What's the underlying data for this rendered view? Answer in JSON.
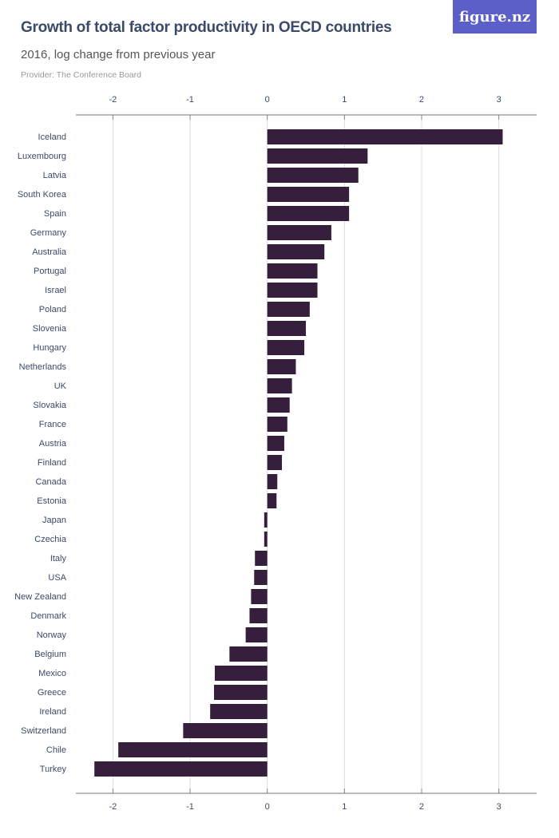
{
  "header": {
    "title": "Growth of total factor productivity in OECD countries",
    "subtitle": "2016, log change from previous year",
    "provider": "Provider: The Conference Board",
    "logo": "figure.nz"
  },
  "colors": {
    "bar": "#361f3d",
    "logo_bg": "#5b5fc7",
    "title": "#3b4a68"
  },
  "chart_data": {
    "type": "bar",
    "orientation": "horizontal",
    "title": "Growth of total factor productivity in OECD countries",
    "subtitle": "2016, log change from previous year",
    "xlabel": "",
    "ylabel": "",
    "xlim": [
      -2.48,
      3.49
    ],
    "xticks": [
      -2,
      -1,
      0,
      1,
      2,
      3
    ],
    "grid": true,
    "categories": [
      "Iceland",
      "Luxembourg",
      "Latvia",
      "South Korea",
      "Spain",
      "Germany",
      "Australia",
      "Portugal",
      "Israel",
      "Poland",
      "Slovenia",
      "Hungary",
      "Netherlands",
      "UK",
      "Slovakia",
      "France",
      "Austria",
      "Finland",
      "Canada",
      "Estonia",
      "Japan",
      "Czechia",
      "Italy",
      "USA",
      "New Zealand",
      "Denmark",
      "Norway",
      "Belgium",
      "Mexico",
      "Greece",
      "Ireland",
      "Switzerland",
      "Chile",
      "Turkey"
    ],
    "values": [
      3.05,
      1.3,
      1.18,
      1.06,
      1.06,
      0.83,
      0.74,
      0.65,
      0.65,
      0.55,
      0.5,
      0.48,
      0.37,
      0.32,
      0.29,
      0.26,
      0.22,
      0.19,
      0.13,
      0.12,
      -0.04,
      -0.04,
      -0.16,
      -0.17,
      -0.21,
      -0.23,
      -0.28,
      -0.49,
      -0.68,
      -0.69,
      -0.74,
      -1.09,
      -1.93,
      -2.24
    ]
  }
}
